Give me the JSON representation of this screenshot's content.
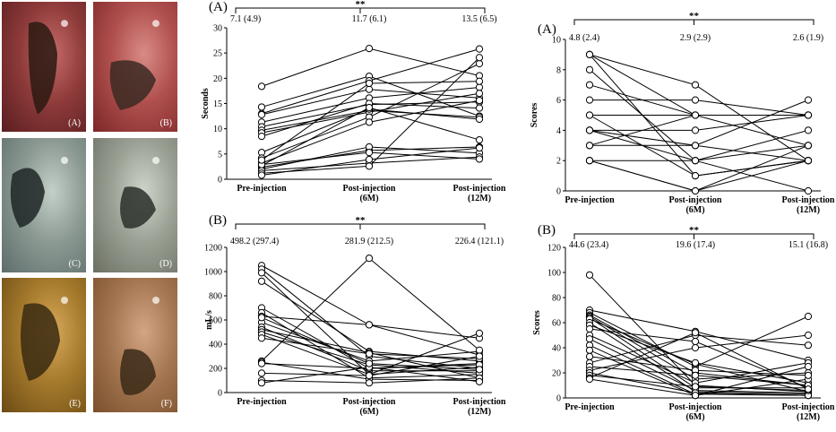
{
  "photos": [
    {
      "label": "(A)",
      "tone": [
        "#5a1d20",
        "#8e3b3a",
        "#c66b6a"
      ],
      "hole": "#2a1a12"
    },
    {
      "label": "(B)",
      "tone": [
        "#7b2728",
        "#b0504e",
        "#d98b86"
      ],
      "hole": "#3a2a22"
    },
    {
      "label": "(C)",
      "tone": [
        "#5d6d6b",
        "#8c9a93",
        "#c4cfc9"
      ],
      "hole": "#1d2625"
    },
    {
      "label": "(D)",
      "tone": [
        "#6b6f63",
        "#9aa194",
        "#cfd4ca"
      ],
      "hole": "#2a2f2a"
    },
    {
      "label": "(E)",
      "tone": [
        "#6b4a14",
        "#a57a2c",
        "#d8a95a"
      ],
      "hole": "#3a2a12"
    },
    {
      "label": "(F)",
      "tone": [
        "#7a4f2c",
        "#a57752",
        "#d4a585"
      ],
      "hole": "#3a2a18"
    }
  ],
  "categories": [
    "Pre-injection",
    "Post-injection\n(6M)",
    "Post-injection\n(12M)"
  ],
  "chart_data": [
    {
      "type": "line",
      "panel": "(A)",
      "ylabel": "Seconds",
      "ylim": [
        0,
        30
      ],
      "yticks": [
        0,
        5,
        10,
        15,
        20,
        25,
        30
      ],
      "significance": "**",
      "means": [
        "7.1 (4.9)",
        "11.7 (6.1)",
        "13.5 (6.5)"
      ],
      "series": [
        [
          18.4,
          25.9,
          20.5
        ],
        [
          14.3,
          20.4,
          12.5
        ],
        [
          13.0,
          19.5,
          25.8
        ],
        [
          12.8,
          17.8,
          16.1
        ],
        [
          11.3,
          16.1,
          18.2
        ],
        [
          10.4,
          14.8,
          15.3
        ],
        [
          9.7,
          13.6,
          12.3
        ],
        [
          9.2,
          13.3,
          17.0
        ],
        [
          8.5,
          15.0,
          14.1
        ],
        [
          5.3,
          13.9,
          11.9
        ],
        [
          4.2,
          12.3,
          22.9
        ],
        [
          3.2,
          11.3,
          15.6
        ],
        [
          2.7,
          14.2,
          7.8
        ],
        [
          2.4,
          5.7,
          6.4
        ],
        [
          2.0,
          6.4,
          5.2
        ],
        [
          1.7,
          3.2,
          4.4
        ],
        [
          1.2,
          2.6,
          24.1
        ],
        [
          0.8,
          3.9,
          6.2
        ],
        [
          2.9,
          5.3,
          4.0
        ],
        [
          3.8,
          19.0,
          19.4
        ]
      ]
    },
    {
      "type": "line",
      "panel": "(B)",
      "ylabel": "mL/s",
      "ylim": [
        0,
        1200
      ],
      "yticks": [
        0,
        200,
        400,
        600,
        800,
        1000,
        1200
      ],
      "significance": "**",
      "means": [
        "498.2 (297.4)",
        "281.9 (212.5)",
        "226.4 (121.1)"
      ],
      "series": [
        [
          1050,
          560,
          450
        ],
        [
          1020,
          300,
          200
        ],
        [
          990,
          150,
          490
        ],
        [
          920,
          340,
          260
        ],
        [
          700,
          200,
          240
        ],
        [
          660,
          120,
          150
        ],
        [
          630,
          560,
          310
        ],
        [
          580,
          260,
          340
        ],
        [
          540,
          180,
          180
        ],
        [
          520,
          330,
          120
        ],
        [
          500,
          230,
          160
        ],
        [
          480,
          150,
          210
        ],
        [
          450,
          320,
          280
        ],
        [
          260,
          1110,
          350
        ],
        [
          250,
          110,
          100
        ],
        [
          240,
          200,
          230
        ],
        [
          160,
          140,
          300
        ],
        [
          100,
          80,
          120
        ],
        [
          80,
          210,
          90
        ],
        [
          620,
          240,
          190
        ]
      ]
    },
    {
      "type": "line",
      "panel": "(A)",
      "ylabel": "Scores",
      "ylim": [
        0,
        10
      ],
      "yticks": [
        0,
        2,
        4,
        6,
        8,
        10
      ],
      "significance": "**",
      "means": [
        "4.8 (2.4)",
        "2.9 (2.9)",
        "2.6 (1.9)"
      ],
      "series": [
        [
          9,
          7,
          2
        ],
        [
          9,
          5,
          5
        ],
        [
          8,
          2,
          0
        ],
        [
          7,
          5,
          5
        ],
        [
          6,
          6,
          5
        ],
        [
          5,
          5,
          5
        ],
        [
          5,
          1,
          2
        ],
        [
          4,
          4,
          5
        ],
        [
          4,
          3,
          6
        ],
        [
          4,
          2,
          3
        ],
        [
          3,
          5,
          3
        ],
        [
          3,
          3,
          2
        ],
        [
          2,
          0,
          2
        ],
        [
          2,
          2,
          4
        ],
        [
          2,
          0,
          3
        ],
        [
          9,
          1,
          2
        ]
      ]
    },
    {
      "type": "line",
      "panel": "(B)",
      "ylabel": "Scores",
      "ylim": [
        0,
        120
      ],
      "yticks": [
        0,
        20,
        40,
        60,
        80,
        100,
        120
      ],
      "significance": "**",
      "means": [
        "44.6 (23.4)",
        "19.6 (17.4)",
        "15.1 (16.8)"
      ],
      "series": [
        [
          98,
          10,
          5
        ],
        [
          70,
          53,
          30
        ],
        [
          68,
          25,
          65
        ],
        [
          66,
          20,
          10
        ],
        [
          65,
          15,
          20
        ],
        [
          64,
          8,
          8
        ],
        [
          63,
          27,
          5
        ],
        [
          60,
          5,
          3
        ],
        [
          58,
          28,
          12
        ],
        [
          55,
          45,
          8
        ],
        [
          50,
          12,
          28
        ],
        [
          47,
          6,
          4
        ],
        [
          42,
          3,
          2
        ],
        [
          38,
          2,
          15
        ],
        [
          33,
          22,
          18
        ],
        [
          28,
          50,
          42
        ],
        [
          25,
          18,
          10
        ],
        [
          22,
          40,
          50
        ],
        [
          20,
          4,
          2
        ],
        [
          18,
          9,
          6
        ],
        [
          16,
          52,
          7
        ],
        [
          15,
          2,
          25
        ]
      ]
    }
  ]
}
